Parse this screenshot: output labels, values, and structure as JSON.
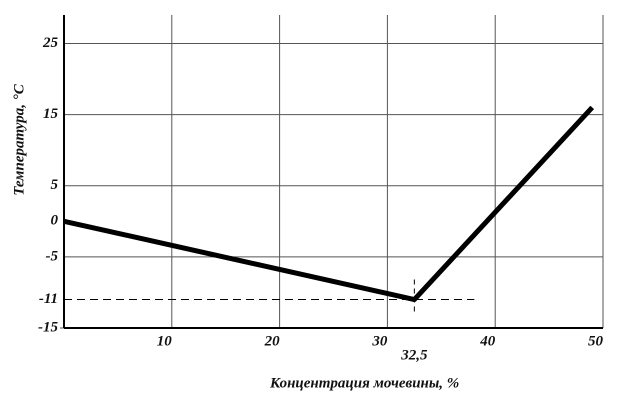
{
  "chart_data": {
    "type": "line",
    "x_label": "Концентрация мочевины, %",
    "y_label": "Температура, °C",
    "series": [
      {
        "x": [
          0,
          32.5,
          49
        ],
        "values": [
          0,
          -11,
          16
        ],
        "color": "#000000"
      }
    ],
    "xlim": [
      0,
      50
    ],
    "ylim": [
      -15,
      29
    ],
    "xticks": [
      10,
      20,
      30,
      {
        "value": 32.5,
        "label": "32,5"
      },
      40,
      50
    ],
    "yticks": [
      25,
      15,
      5,
      0,
      -5,
      -11,
      -15
    ],
    "grid": true
  }
}
